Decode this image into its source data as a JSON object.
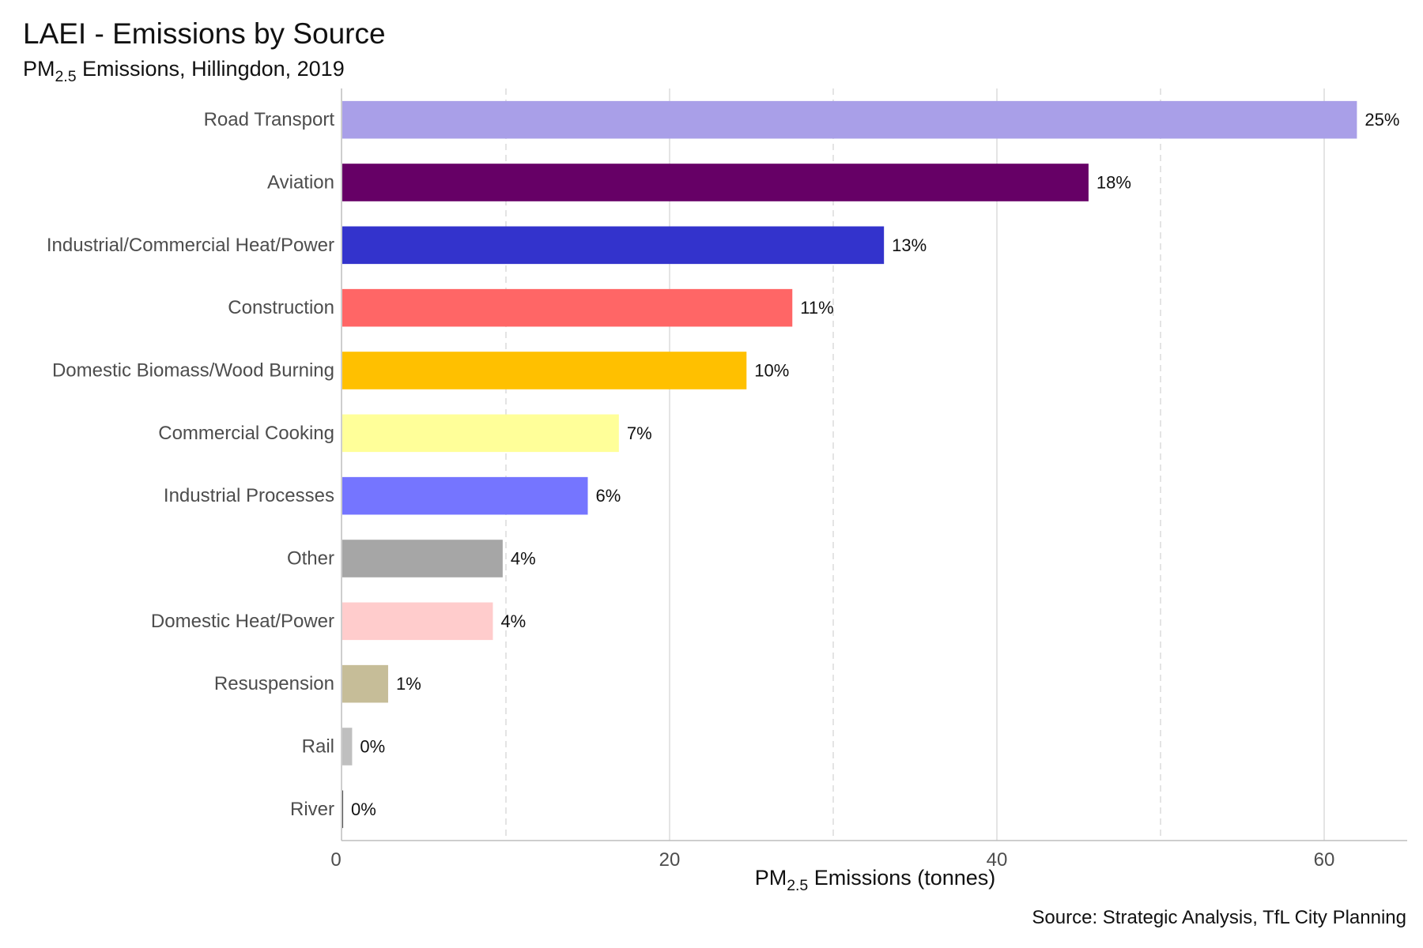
{
  "header": {
    "title": "LAEI - Emissions by Source",
    "subtitle_pre": "PM",
    "subtitle_sub": "2.5",
    "subtitle_post": " Emissions, Hillingdon, 2019"
  },
  "footer": {
    "caption": "Source: Strategic Analysis, TfL City Planning"
  },
  "chart_data": {
    "type": "bar",
    "orientation": "horizontal",
    "title": "LAEI - Emissions by Source",
    "subtitle": "PM2.5 Emissions, Hillingdon, 2019",
    "xlabel": "PM2.5 Emissions (tonnes)",
    "xlabel_parts": {
      "pre": "PM",
      "sub": "2.5",
      "post": " Emissions (tonnes)"
    },
    "ylabel": "",
    "xlim": [
      0,
      65
    ],
    "xticks": [
      0,
      20,
      40,
      60
    ],
    "xtick_labels": [
      "0",
      "20",
      "40",
      "60"
    ],
    "grid": {
      "major_x": "solid",
      "minor_x": "dashed",
      "y": false
    },
    "legend": "none",
    "caption": "Source: Strategic Analysis, TfL City Planning",
    "categories": [
      "Road Transport",
      "Aviation",
      "Industrial/Commercial Heat/Power",
      "Construction",
      "Domestic Biomass/Wood Burning",
      "Commercial Cooking",
      "Industrial Processes",
      "Other",
      "Domestic Heat/Power",
      "Resuspension",
      "Rail",
      "River"
    ],
    "values": [
      62.0,
      45.6,
      33.1,
      27.5,
      24.7,
      16.9,
      15.0,
      9.8,
      9.2,
      2.8,
      0.6,
      0.05
    ],
    "value_labels": [
      "25%",
      "18%",
      "13%",
      "11%",
      "10%",
      "7%",
      "6%",
      "4%",
      "4%",
      "1%",
      "0%",
      "0%"
    ],
    "colors": [
      "#a99fe8",
      "#660066",
      "#3333cc",
      "#ff6666",
      "#ffc000",
      "#ffff99",
      "#7575ff",
      "#a6a6a6",
      "#ffcccc",
      "#c6bd98",
      "#bfbfbf",
      "#4d4d4d"
    ]
  }
}
